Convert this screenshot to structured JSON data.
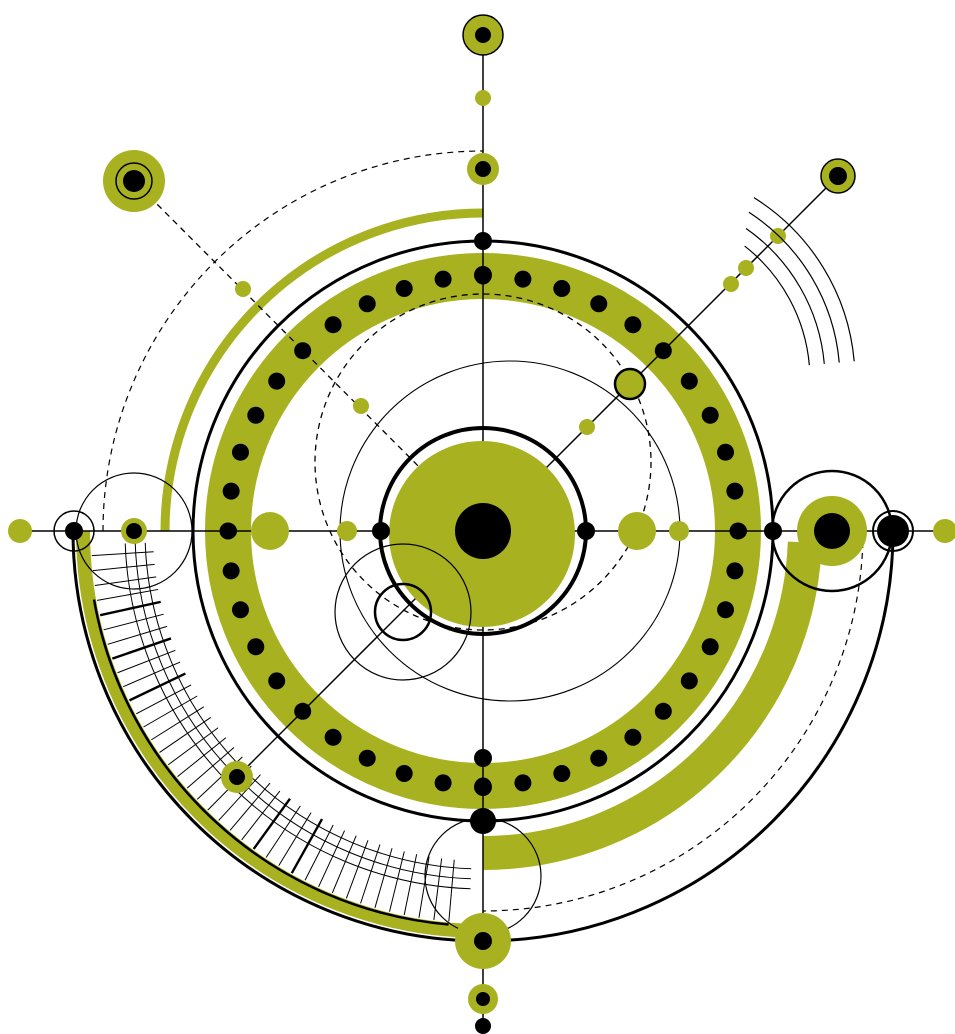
{
  "figure": {
    "kind": "abstract geometric circular ornament",
    "colors": {
      "accent": "#a8b11f",
      "ink": "#000000",
      "background": "#ffffff"
    }
  }
}
